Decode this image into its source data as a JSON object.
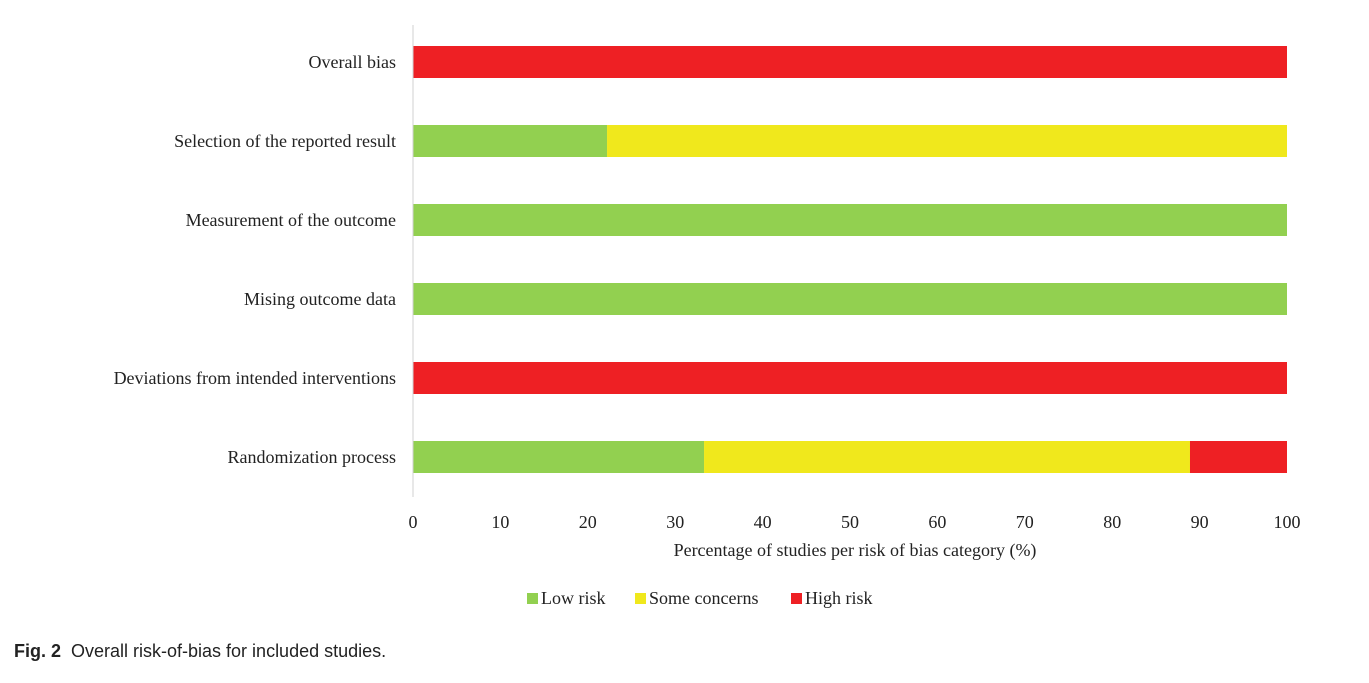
{
  "chart_data": {
    "type": "bar",
    "orientation": "horizontal",
    "stacked": true,
    "categories": [
      "Overall bias",
      "Selection of the reported result",
      "Measurement of the outcome",
      "Mising outcome data",
      "Deviations from intended interventions",
      "Randomization process"
    ],
    "series": [
      {
        "name": "Low risk",
        "color": "#92d050",
        "values": [
          0,
          22.2,
          100,
          100,
          0,
          33.3
        ]
      },
      {
        "name": "Some concerns",
        "color": "#f0e81c",
        "values": [
          0,
          77.8,
          0,
          0,
          0,
          55.6
        ]
      },
      {
        "name": "High risk",
        "color": "#ee2024",
        "values": [
          100,
          0,
          0,
          0,
          100,
          11.1
        ]
      }
    ],
    "xlabel": "Percentage of studies per risk of bias category (%)",
    "ylabel": "",
    "xlim": [
      0,
      100
    ],
    "xticks": [
      "0",
      "10",
      "20",
      "30",
      "40",
      "50",
      "60",
      "70",
      "80",
      "90",
      "100"
    ],
    "grid": false,
    "legend_position": "bottom"
  },
  "caption": {
    "label": "Fig. 2",
    "text": "Overall risk-of-bias for included studies."
  }
}
